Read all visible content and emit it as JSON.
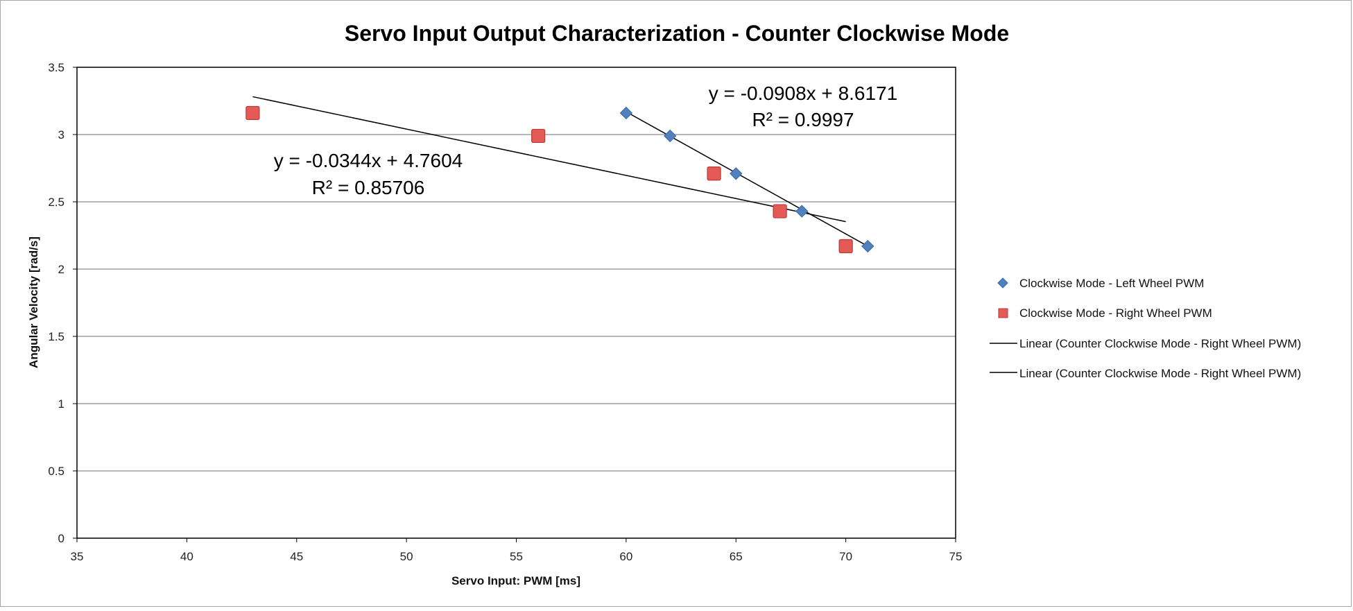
{
  "chart_data": {
    "type": "scatter",
    "title": "Servo Input Output Characterization - Counter Clockwise Mode",
    "xlabel": "Servo Input: PWM [ms]",
    "ylabel": "Angular Velocity [rad/s]",
    "xlim": [
      35,
      75
    ],
    "ylim": [
      0,
      3.5
    ],
    "xticks": [
      "35",
      "40",
      "45",
      "50",
      "55",
      "60",
      "65",
      "70",
      "75"
    ],
    "yticks": [
      "0",
      "0.5",
      "1",
      "1.5",
      "2",
      "2.5",
      "3",
      "3.5"
    ],
    "grid": "horizontal",
    "legend_position": "right",
    "series": [
      {
        "name": "Clockwise Mode - Left Wheel PWM",
        "marker": "diamond",
        "color": "#4f81bd",
        "x": [
          60,
          62,
          65,
          68,
          71
        ],
        "y": [
          3.16,
          2.99,
          2.71,
          2.43,
          2.17
        ]
      },
      {
        "name": "Clockwise Mode - Right Wheel PWM",
        "marker": "square",
        "color": "#c0504d",
        "x": [
          43,
          56,
          64,
          67,
          70
        ],
        "y": [
          3.16,
          2.99,
          2.71,
          2.43,
          2.17
        ]
      }
    ],
    "trendlines": [
      {
        "name": "Linear (Counter Clockwise Mode - Right Wheel PWM)",
        "color": "#000000",
        "slope": -0.0908,
        "intercept": 8.6171,
        "x_range": [
          60,
          71
        ],
        "equation": "y = -0.0908x + 8.6171",
        "r2": "R² = 0.9997"
      },
      {
        "name": "Linear (Counter Clockwise Mode - Right Wheel PWM)",
        "color": "#000000",
        "slope": -0.0344,
        "intercept": 4.7604,
        "x_range": [
          43,
          70
        ],
        "equation": "y = -0.0344x + 4.7604",
        "r2": "R² = 0.85706"
      }
    ]
  }
}
